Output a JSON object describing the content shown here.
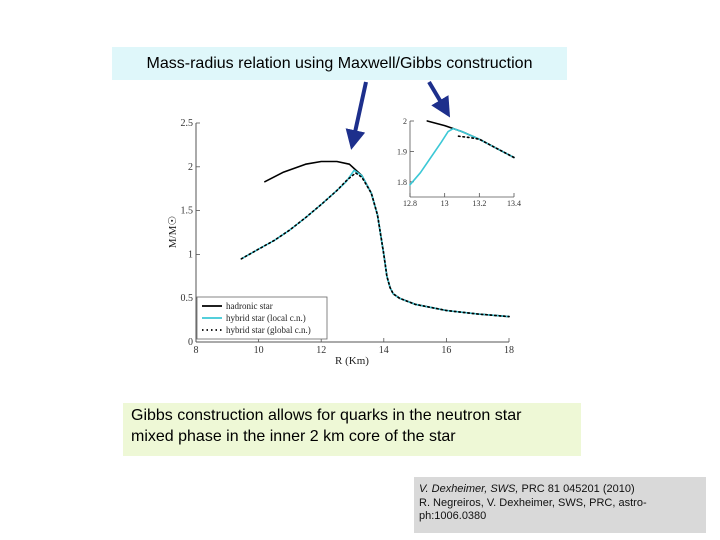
{
  "title": "Mass-radius relation using Maxwell/Gibbs construction",
  "note": {
    "line1": "Gibbs construction allows for quarks in the neutron star",
    "line2": "mixed phase in the inner 2 km core of the star"
  },
  "reference": {
    "authors1": "V. Dexheimer, SWS,",
    "cite1": " PRC 81 045201 (2010)",
    "line2": "R. Negreiros, V. Dexheimer, SWS, PRC, astro-",
    "line3": "ph:1006.0380"
  },
  "colors": {
    "hadronic": "#000000",
    "local": "#3cc8d6",
    "global": "#000000",
    "arrow": "#1d2f8c"
  },
  "chart_data": [
    {
      "type": "line",
      "xlabel": "R (Km)",
      "ylabel": "M/M☉",
      "xlim": [
        8,
        18
      ],
      "ylim": [
        0,
        2.5
      ],
      "xticks": [
        "8",
        "10",
        "12",
        "14",
        "16",
        "18"
      ],
      "yticks": [
        "0",
        "0.5",
        "1",
        "1.5",
        "2",
        "2.5"
      ],
      "legend_position": "bottom-left",
      "series": [
        {
          "name": "hadronic star",
          "style": "solid-black",
          "x": [
            10.2,
            10.8,
            11.5,
            12.0,
            12.5,
            12.9,
            13.3,
            13.6,
            13.8,
            14.0,
            14.1,
            14.2,
            14.3,
            14.5,
            15.0,
            16.0,
            17.0,
            18.0
          ],
          "y": [
            1.83,
            1.94,
            2.03,
            2.06,
            2.06,
            2.03,
            1.9,
            1.7,
            1.45,
            1.0,
            0.75,
            0.62,
            0.55,
            0.5,
            0.43,
            0.36,
            0.32,
            0.29
          ]
        },
        {
          "name": "hybrid star (local c.n.)",
          "style": "solid-cyan",
          "x": [
            9.45,
            10.0,
            10.5,
            11.0,
            11.5,
            12.0,
            12.5,
            12.8,
            13.05,
            13.3,
            13.6,
            13.8,
            14.0,
            14.1,
            14.2,
            14.3,
            14.5,
            15.0,
            16.0,
            17.0,
            18.0
          ],
          "y": [
            0.95,
            1.06,
            1.16,
            1.28,
            1.42,
            1.57,
            1.73,
            1.83,
            1.96,
            1.9,
            1.7,
            1.45,
            1.0,
            0.75,
            0.62,
            0.55,
            0.5,
            0.43,
            0.36,
            0.32,
            0.29
          ]
        },
        {
          "name": "hybrid star (global c.n.)",
          "style": "dotted-black",
          "x": [
            9.45,
            10.0,
            10.5,
            11.0,
            11.5,
            12.0,
            12.5,
            12.8,
            13.1,
            13.3,
            13.6,
            13.8,
            14.0,
            14.1,
            14.2,
            14.3,
            14.5,
            15.0,
            16.0,
            17.0,
            18.0
          ],
          "y": [
            0.95,
            1.06,
            1.16,
            1.28,
            1.42,
            1.57,
            1.73,
            1.84,
            1.93,
            1.88,
            1.7,
            1.45,
            1.0,
            0.75,
            0.62,
            0.55,
            0.5,
            0.43,
            0.36,
            0.32,
            0.29
          ]
        }
      ]
    },
    {
      "type": "line",
      "role": "inset",
      "xlim": [
        12.8,
        13.4
      ],
      "ylim": [
        1.75,
        2.0
      ],
      "xticks": [
        "12.8",
        "13",
        "13.2",
        "13.4"
      ],
      "yticks": [
        "1.8",
        "1.9",
        "2"
      ],
      "series": [
        {
          "name": "hadronic star",
          "style": "solid-black",
          "x": [
            12.9,
            13.0,
            13.1,
            13.2,
            13.3,
            13.4
          ],
          "y": [
            2.0,
            1.985,
            1.965,
            1.94,
            1.91,
            1.88
          ]
        },
        {
          "name": "hybrid star (local c.n.)",
          "style": "solid-cyan",
          "x": [
            12.8,
            12.86,
            12.92,
            12.98,
            13.02,
            13.05,
            13.1,
            13.2,
            13.3,
            13.4
          ],
          "y": [
            1.79,
            1.83,
            1.88,
            1.93,
            1.965,
            1.975,
            1.965,
            1.94,
            1.91,
            1.88
          ]
        },
        {
          "name": "hybrid star (global c.n.)",
          "style": "dotted-black",
          "x": [
            13.08,
            13.15,
            13.2,
            13.3,
            13.4
          ],
          "y": [
            1.95,
            1.945,
            1.94,
            1.91,
            1.88
          ]
        }
      ]
    }
  ]
}
